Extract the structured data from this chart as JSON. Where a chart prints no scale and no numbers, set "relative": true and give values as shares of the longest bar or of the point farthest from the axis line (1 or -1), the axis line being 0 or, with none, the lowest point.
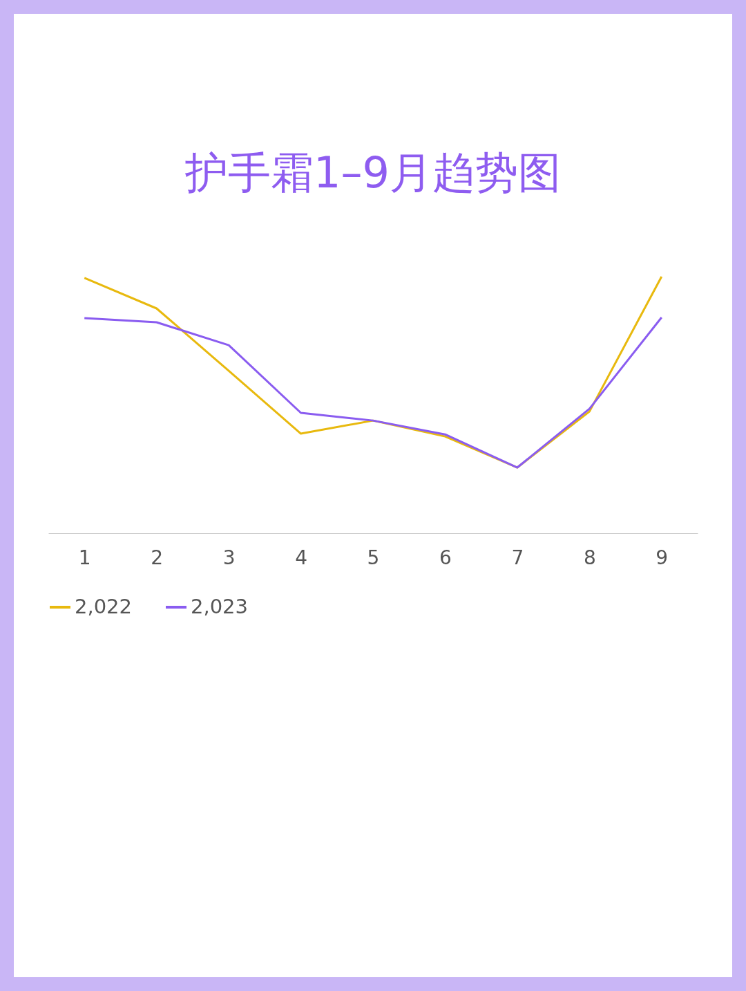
{
  "chart_data": {
    "type": "line",
    "title": "护手霜1–9月趋势图",
    "categories": [
      "1",
      "2",
      "3",
      "4",
      "5",
      "6",
      "7",
      "8",
      "9"
    ],
    "relative": true,
    "legend": "bottom",
    "series": [
      {
        "name": "2,022",
        "color": "#e8b90e",
        "values": [
          0.995,
          0.876,
          0.633,
          0.388,
          0.439,
          0.377,
          0.256,
          0.474,
          1
        ]
      },
      {
        "name": "2,023",
        "color": "#8a5cf0",
        "values": [
          0.838,
          0.822,
          0.733,
          0.469,
          0.439,
          0.385,
          0.256,
          0.485,
          0.841
        ]
      }
    ]
  }
}
